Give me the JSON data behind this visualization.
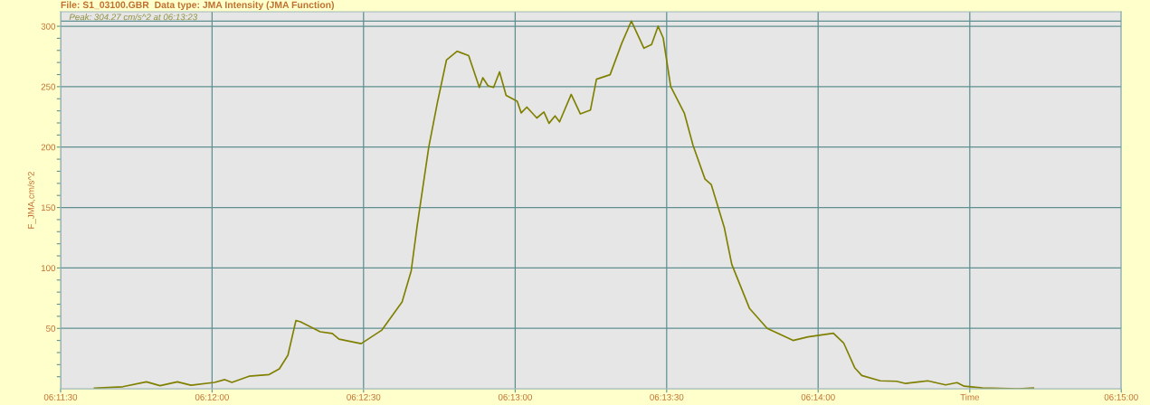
{
  "chart_data": {
    "type": "line",
    "title": "File: S1_03100.GBR  Data type: JMA Intensity (JMA Function)",
    "ylabel": "F_JMA,cm/s^2",
    "annotations": [
      "Peak: 304.27 cm/s^2 at 06:13:23"
    ],
    "x": [
      6.19353,
      6.19509,
      6.19639,
      6.19714,
      6.19809,
      6.19884,
      6.20014,
      6.2007,
      6.20109,
      6.20203,
      6.20314,
      6.2037,
      6.20417,
      6.20461,
      6.20484,
      6.20595,
      6.20661,
      6.20698,
      6.2082,
      6.20934,
      6.21045,
      6.21095,
      6.21128,
      6.21192,
      6.21239,
      6.21289,
      6.21348,
      6.21411,
      6.2147,
      6.21489,
      6.21517,
      6.21548,
      6.21581,
      6.21617,
      6.21678,
      6.217,
      6.21731,
      6.21786,
      6.21825,
      6.21853,
      6.21886,
      6.21911,
      6.21975,
      6.22025,
      6.22081,
      6.22114,
      6.22189,
      6.22253,
      6.22306,
      6.22375,
      6.22417,
      6.22453,
      6.22481,
      6.22522,
      6.22597,
      6.22645,
      6.22711,
      6.22745,
      6.22817,
      6.22858,
      6.22956,
      6.23053,
      6.23139,
      6.23195,
      6.23278,
      6.23347,
      6.23417,
      6.23473,
      6.23534,
      6.23573,
      6.23675,
      6.23764,
      6.23814,
      6.23936,
      6.24034,
      6.24097,
      6.24136,
      6.24236,
      6.24436,
      6.24517
    ],
    "series": [
      {
        "color": "#808000",
        "values": [
          0.5,
          1.7,
          5.8,
          2.6,
          5.8,
          3,
          5.3,
          7.6,
          5.3,
          10.4,
          11.8,
          16.5,
          27.7,
          56.4,
          55.6,
          47.2,
          45.8,
          41.1,
          37.4,
          48.6,
          71.8,
          97.5,
          135,
          200.2,
          236.7,
          272,
          279.3,
          275.7,
          249.4,
          257.4,
          250.8,
          249.4,
          262.3,
          242.8,
          238,
          228.3,
          233.1,
          224.1,
          229,
          219.7,
          225.8,
          220.9,
          243.6,
          227.5,
          230.7,
          256.2,
          259.9,
          285.9,
          304.3,
          281.8,
          284.9,
          300,
          290.3,
          250.1,
          228.2,
          201.5,
          173.5,
          169.1,
          133.4,
          103,
          66.4,
          50,
          44,
          40,
          43,
          44.5,
          46,
          38,
          17.5,
          11,
          6.6,
          6.2,
          4.4,
          6.6,
          3.2,
          5.1,
          2.2,
          0.7,
          0,
          0.7
        ]
      }
    ],
    "xlim": [
      6.19167,
      6.25
    ],
    "xticks": [
      {
        "value": 6.19167,
        "label": "06:11:30"
      },
      {
        "value": 6.2,
        "label": "06:12:00"
      },
      {
        "value": 6.20833,
        "label": "06:12:30"
      },
      {
        "value": 6.21667,
        "label": "06:13:00"
      },
      {
        "value": 6.225,
        "label": "06:13:30"
      },
      {
        "value": 6.23333,
        "label": "06:14:00"
      },
      {
        "value": 6.24167,
        "label": "Time"
      },
      {
        "value": 6.25,
        "label": "06:15:00"
      }
    ],
    "ylim": [
      0,
      312
    ],
    "yticks": [
      {
        "value": 10,
        "label": null
      },
      {
        "value": 20,
        "label": null
      },
      {
        "value": 30,
        "label": null
      },
      {
        "value": 40,
        "label": null
      },
      50,
      {
        "value": 60,
        "label": null
      },
      {
        "value": 70,
        "label": null
      },
      {
        "value": 80,
        "label": null
      },
      {
        "value": 90,
        "label": null
      },
      100,
      {
        "value": 110,
        "label": null
      },
      {
        "value": 120,
        "label": null
      },
      {
        "value": 130,
        "label": null
      },
      {
        "value": 140,
        "label": null
      },
      150,
      {
        "value": 160,
        "label": null
      },
      {
        "value": 170,
        "label": null
      },
      {
        "value": 180,
        "label": null
      },
      {
        "value": 190,
        "label": null
      },
      200,
      {
        "value": 210,
        "label": null
      },
      {
        "value": 220,
        "label": null
      },
      {
        "value": 230,
        "label": null
      },
      {
        "value": 240,
        "label": null
      },
      250,
      {
        "value": 260,
        "label": null
      },
      {
        "value": 270,
        "label": null
      },
      {
        "value": 280,
        "label": null
      },
      {
        "value": 290,
        "label": null
      },
      300
    ],
    "ref_lines": [
      {
        "axis": "y",
        "value": 304.27,
        "color": "#5f8f8f"
      }
    ],
    "grid": true,
    "legend": false
  }
}
